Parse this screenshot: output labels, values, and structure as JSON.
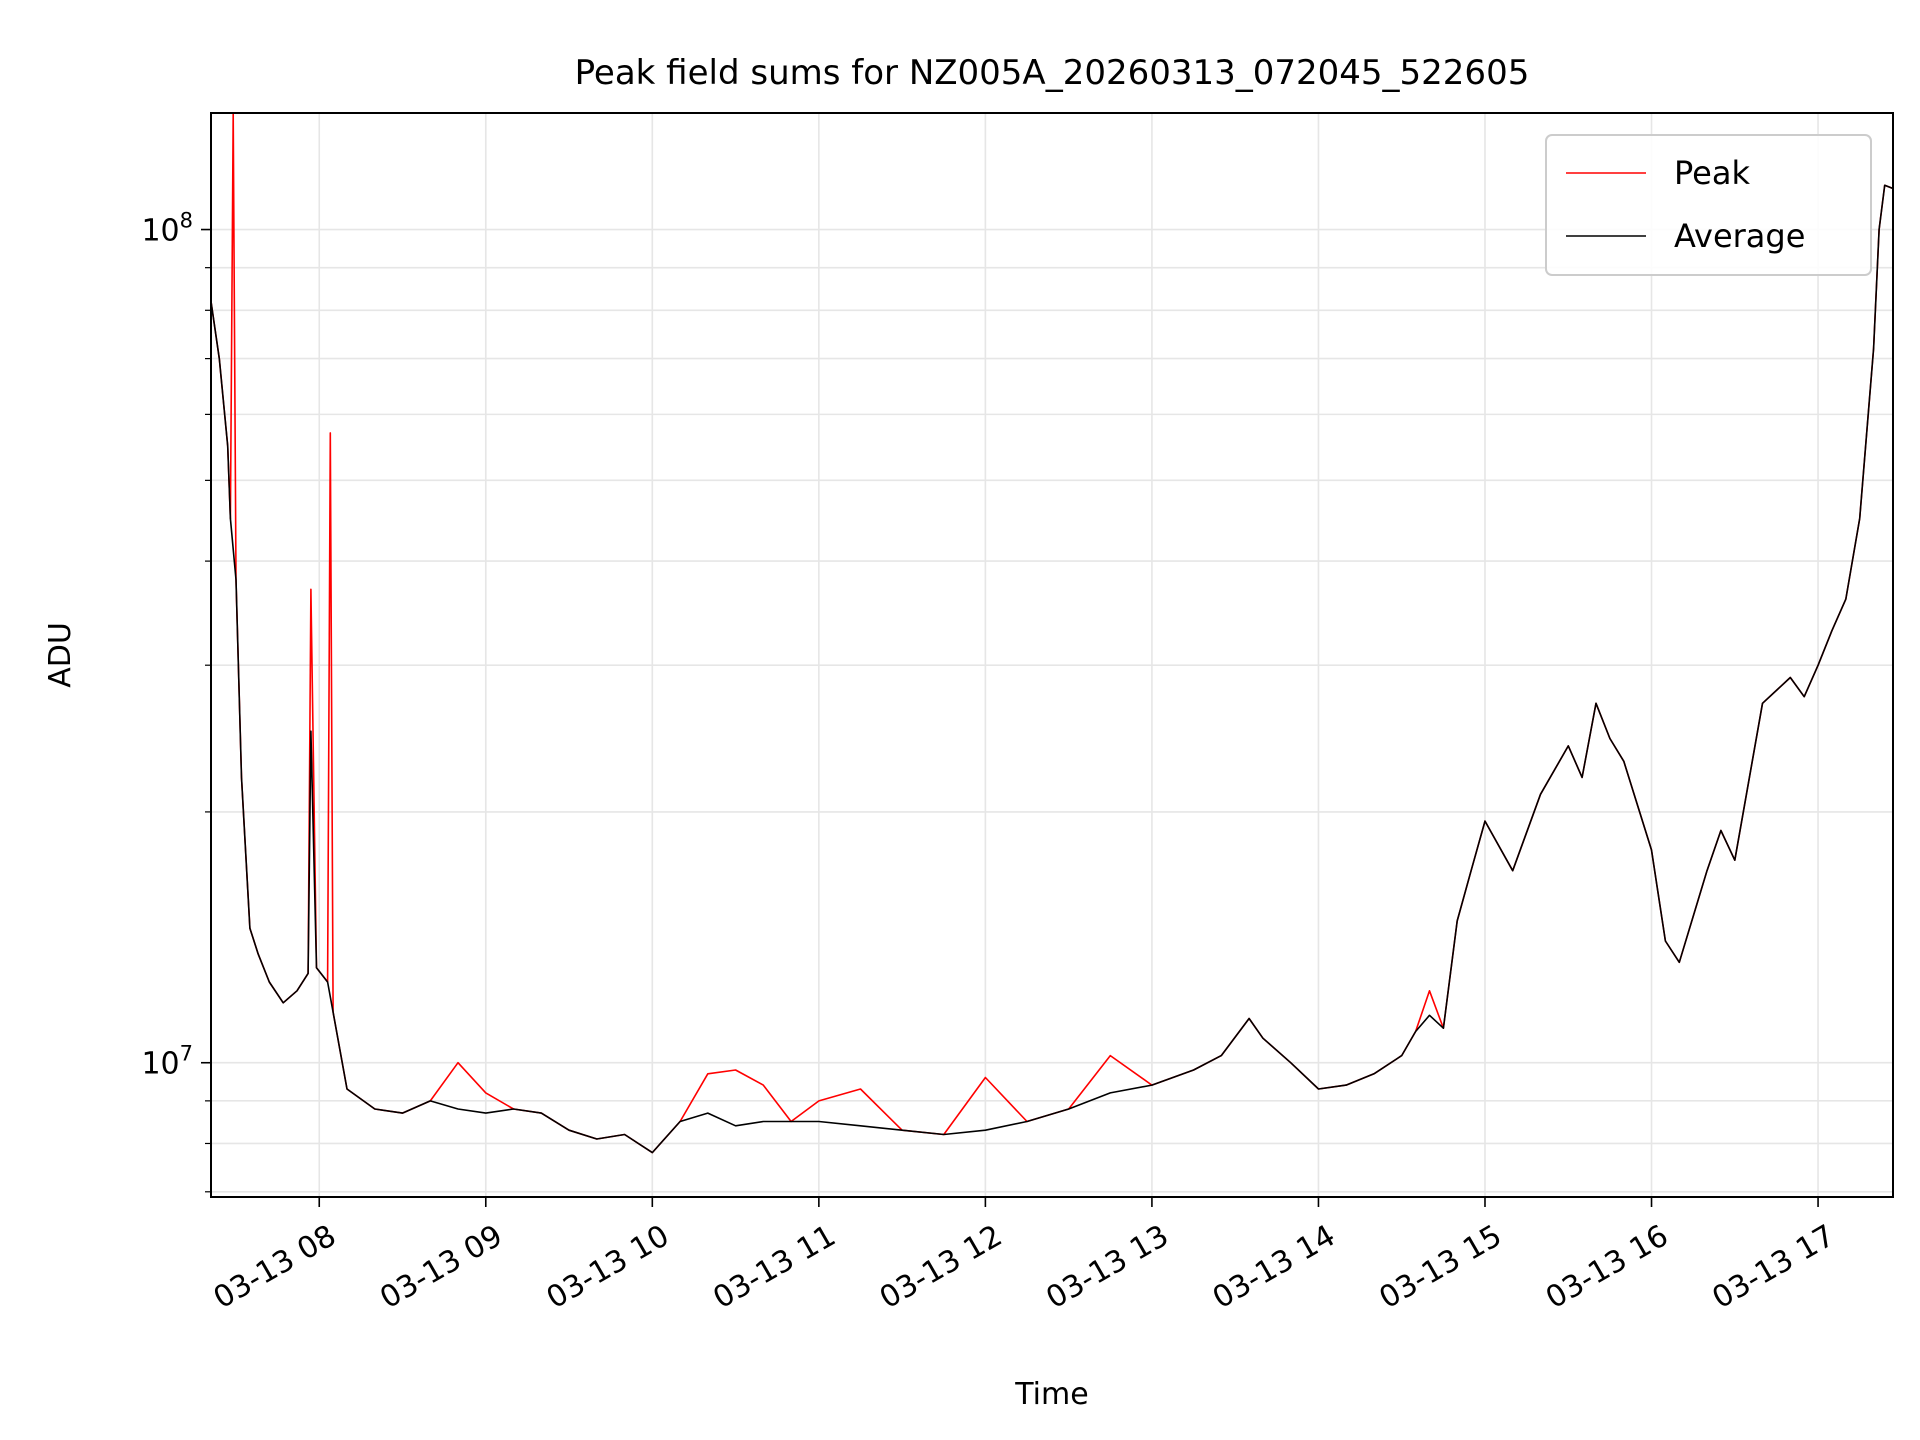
{
  "chart_data": {
    "type": "line",
    "title": "Peak field sums for NZ005A_20260313_072045_522605",
    "xlabel": "Time",
    "ylabel": "ADU",
    "yscale": "log",
    "xlim": [
      "2026-03-13 07:21",
      "2026-03-13 17:27"
    ],
    "ylim": [
      6900000,
      138000000
    ],
    "grid": true,
    "legend": {
      "position": "top-right",
      "entries": [
        "Peak",
        "Average"
      ]
    },
    "x_ticks": [
      "03-13 08",
      "03-13 09",
      "03-13 10",
      "03-13 11",
      "03-13 12",
      "03-13 13",
      "03-13 14",
      "03-13 15",
      "03-13 16",
      "03-13 17"
    ],
    "x_tick_times": [
      "2026-03-13 08:00",
      "2026-03-13 09:00",
      "2026-03-13 10:00",
      "2026-03-13 11:00",
      "2026-03-13 12:00",
      "2026-03-13 13:00",
      "2026-03-13 14:00",
      "2026-03-13 15:00",
      "2026-03-13 16:00",
      "2026-03-13 17:00"
    ],
    "y_ticks": [
      {
        "value": 10000000,
        "label_base": "10",
        "label_exp": "7"
      },
      {
        "value": 100000000,
        "label_base": "10",
        "label_exp": "8"
      }
    ],
    "series": [
      {
        "name": "Average",
        "color": "#000000",
        "x": [
          "2026-03-13 07:21",
          "2026-03-13 07:24",
          "2026-03-13 07:27",
          "2026-03-13 07:28",
          "2026-03-13 07:30",
          "2026-03-13 07:32",
          "2026-03-13 07:35",
          "2026-03-13 07:38",
          "2026-03-13 07:42",
          "2026-03-13 07:47",
          "2026-03-13 07:52",
          "2026-03-13 07:56",
          "2026-03-13 07:57",
          "2026-03-13 07:59",
          "2026-03-13 08:03",
          "2026-03-13 08:05",
          "2026-03-13 08:10",
          "2026-03-13 08:20",
          "2026-03-13 08:30",
          "2026-03-13 08:40",
          "2026-03-13 08:50",
          "2026-03-13 09:00",
          "2026-03-13 09:10",
          "2026-03-13 09:20",
          "2026-03-13 09:30",
          "2026-03-13 09:40",
          "2026-03-13 09:50",
          "2026-03-13 10:00",
          "2026-03-13 10:10",
          "2026-03-13 10:20",
          "2026-03-13 10:30",
          "2026-03-13 10:40",
          "2026-03-13 10:50",
          "2026-03-13 11:00",
          "2026-03-13 11:15",
          "2026-03-13 11:30",
          "2026-03-13 11:45",
          "2026-03-13 12:00",
          "2026-03-13 12:15",
          "2026-03-13 12:30",
          "2026-03-13 12:45",
          "2026-03-13 13:00",
          "2026-03-13 13:15",
          "2026-03-13 13:25",
          "2026-03-13 13:35",
          "2026-03-13 13:40",
          "2026-03-13 13:50",
          "2026-03-13 14:00",
          "2026-03-13 14:10",
          "2026-03-13 14:20",
          "2026-03-13 14:30",
          "2026-03-13 14:35",
          "2026-03-13 14:40",
          "2026-03-13 14:45",
          "2026-03-13 14:50",
          "2026-03-13 14:55",
          "2026-03-13 15:00",
          "2026-03-13 15:10",
          "2026-03-13 15:20",
          "2026-03-13 15:30",
          "2026-03-13 15:35",
          "2026-03-13 15:40",
          "2026-03-13 15:45",
          "2026-03-13 15:50",
          "2026-03-13 16:00",
          "2026-03-13 16:05",
          "2026-03-13 16:10",
          "2026-03-13 16:20",
          "2026-03-13 16:25",
          "2026-03-13 16:30",
          "2026-03-13 16:40",
          "2026-03-13 16:50",
          "2026-03-13 16:55",
          "2026-03-13 17:00",
          "2026-03-13 17:05",
          "2026-03-13 17:10",
          "2026-03-13 17:15",
          "2026-03-13 17:20",
          "2026-03-13 17:22",
          "2026-03-13 17:24",
          "2026-03-13 17:27"
        ],
        "values": [
          82000000,
          70000000,
          55000000,
          45000000,
          38000000,
          22000000,
          14500000,
          13500000,
          12500000,
          11800000,
          12200000,
          12800000,
          25000000,
          13000000,
          12500000,
          11500000,
          9300000,
          8800000,
          8700000,
          9000000,
          8800000,
          8700000,
          8800000,
          8700000,
          8300000,
          8100000,
          8200000,
          7800000,
          8500000,
          8700000,
          8400000,
          8500000,
          8500000,
          8500000,
          8400000,
          8300000,
          8200000,
          8300000,
          8500000,
          8800000,
          9200000,
          9400000,
          9800000,
          10200000,
          11300000,
          10700000,
          10000000,
          9300000,
          9400000,
          9700000,
          10200000,
          10900000,
          11400000,
          11000000,
          14800000,
          17000000,
          19500000,
          17000000,
          21000000,
          24000000,
          22000000,
          27000000,
          24500000,
          23000000,
          18000000,
          14000000,
          13200000,
          17000000,
          19000000,
          17500000,
          27000000,
          29000000,
          27500000,
          30000000,
          33000000,
          36000000,
          45000000,
          72000000,
          100000000,
          113000000,
          112000000
        ]
      },
      {
        "name": "Peak",
        "color": "#ff0000",
        "x": [
          "2026-03-13 07:21",
          "2026-03-13 07:24",
          "2026-03-13 07:27",
          "2026-03-13 07:28",
          "2026-03-13 07:29",
          "2026-03-13 07:30",
          "2026-03-13 07:32",
          "2026-03-13 07:35",
          "2026-03-13 07:38",
          "2026-03-13 07:42",
          "2026-03-13 07:47",
          "2026-03-13 07:52",
          "2026-03-13 07:56",
          "2026-03-13 07:57",
          "2026-03-13 07:59",
          "2026-03-13 08:03",
          "2026-03-13 08:04",
          "2026-03-13 08:05",
          "2026-03-13 08:10",
          "2026-03-13 08:20",
          "2026-03-13 08:30",
          "2026-03-13 08:40",
          "2026-03-13 08:50",
          "2026-03-13 09:00",
          "2026-03-13 09:10",
          "2026-03-13 09:20",
          "2026-03-13 09:30",
          "2026-03-13 09:40",
          "2026-03-13 09:50",
          "2026-03-13 10:00",
          "2026-03-13 10:10",
          "2026-03-13 10:20",
          "2026-03-13 10:30",
          "2026-03-13 10:40",
          "2026-03-13 10:50",
          "2026-03-13 11:00",
          "2026-03-13 11:15",
          "2026-03-13 11:30",
          "2026-03-13 11:45",
          "2026-03-13 12:00",
          "2026-03-13 12:15",
          "2026-03-13 12:30",
          "2026-03-13 12:45",
          "2026-03-13 13:00",
          "2026-03-13 13:15",
          "2026-03-13 13:25",
          "2026-03-13 13:35",
          "2026-03-13 13:40",
          "2026-03-13 13:50",
          "2026-03-13 14:00",
          "2026-03-13 14:10",
          "2026-03-13 14:20",
          "2026-03-13 14:30",
          "2026-03-13 14:35",
          "2026-03-13 14:40",
          "2026-03-13 14:45",
          "2026-03-13 14:50",
          "2026-03-13 14:55",
          "2026-03-13 15:00",
          "2026-03-13 15:10",
          "2026-03-13 15:20",
          "2026-03-13 15:30",
          "2026-03-13 15:35",
          "2026-03-13 15:40",
          "2026-03-13 15:45",
          "2026-03-13 15:50",
          "2026-03-13 16:00",
          "2026-03-13 16:05",
          "2026-03-13 16:10",
          "2026-03-13 16:20",
          "2026-03-13 16:25",
          "2026-03-13 16:30",
          "2026-03-13 16:40",
          "2026-03-13 16:50",
          "2026-03-13 16:55",
          "2026-03-13 17:00",
          "2026-03-13 17:05",
          "2026-03-13 17:10",
          "2026-03-13 17:15",
          "2026-03-13 17:20",
          "2026-03-13 17:22",
          "2026-03-13 17:24",
          "2026-03-13 17:27"
        ],
        "values": [
          82000000,
          70000000,
          55000000,
          45000000,
          138000000,
          38000000,
          22000000,
          14500000,
          13500000,
          12500000,
          11800000,
          12200000,
          12800000,
          37000000,
          13000000,
          12500000,
          57000000,
          11500000,
          9300000,
          8800000,
          8700000,
          9000000,
          10000000,
          9200000,
          8800000,
          8700000,
          8300000,
          8100000,
          8200000,
          7800000,
          8500000,
          9700000,
          9800000,
          9400000,
          8500000,
          9000000,
          9300000,
          8300000,
          8200000,
          9600000,
          8500000,
          8800000,
          10200000,
          9400000,
          9800000,
          10200000,
          11300000,
          10700000,
          10000000,
          9300000,
          9400000,
          9700000,
          10200000,
          10900000,
          12200000,
          11000000,
          14800000,
          17000000,
          19500000,
          17000000,
          21000000,
          24000000,
          22000000,
          27000000,
          24500000,
          23000000,
          18000000,
          14000000,
          13200000,
          17000000,
          19000000,
          17500000,
          27000000,
          29000000,
          27500000,
          30000000,
          33000000,
          36000000,
          45000000,
          72000000,
          100000000,
          113000000,
          112000000
        ]
      }
    ]
  }
}
